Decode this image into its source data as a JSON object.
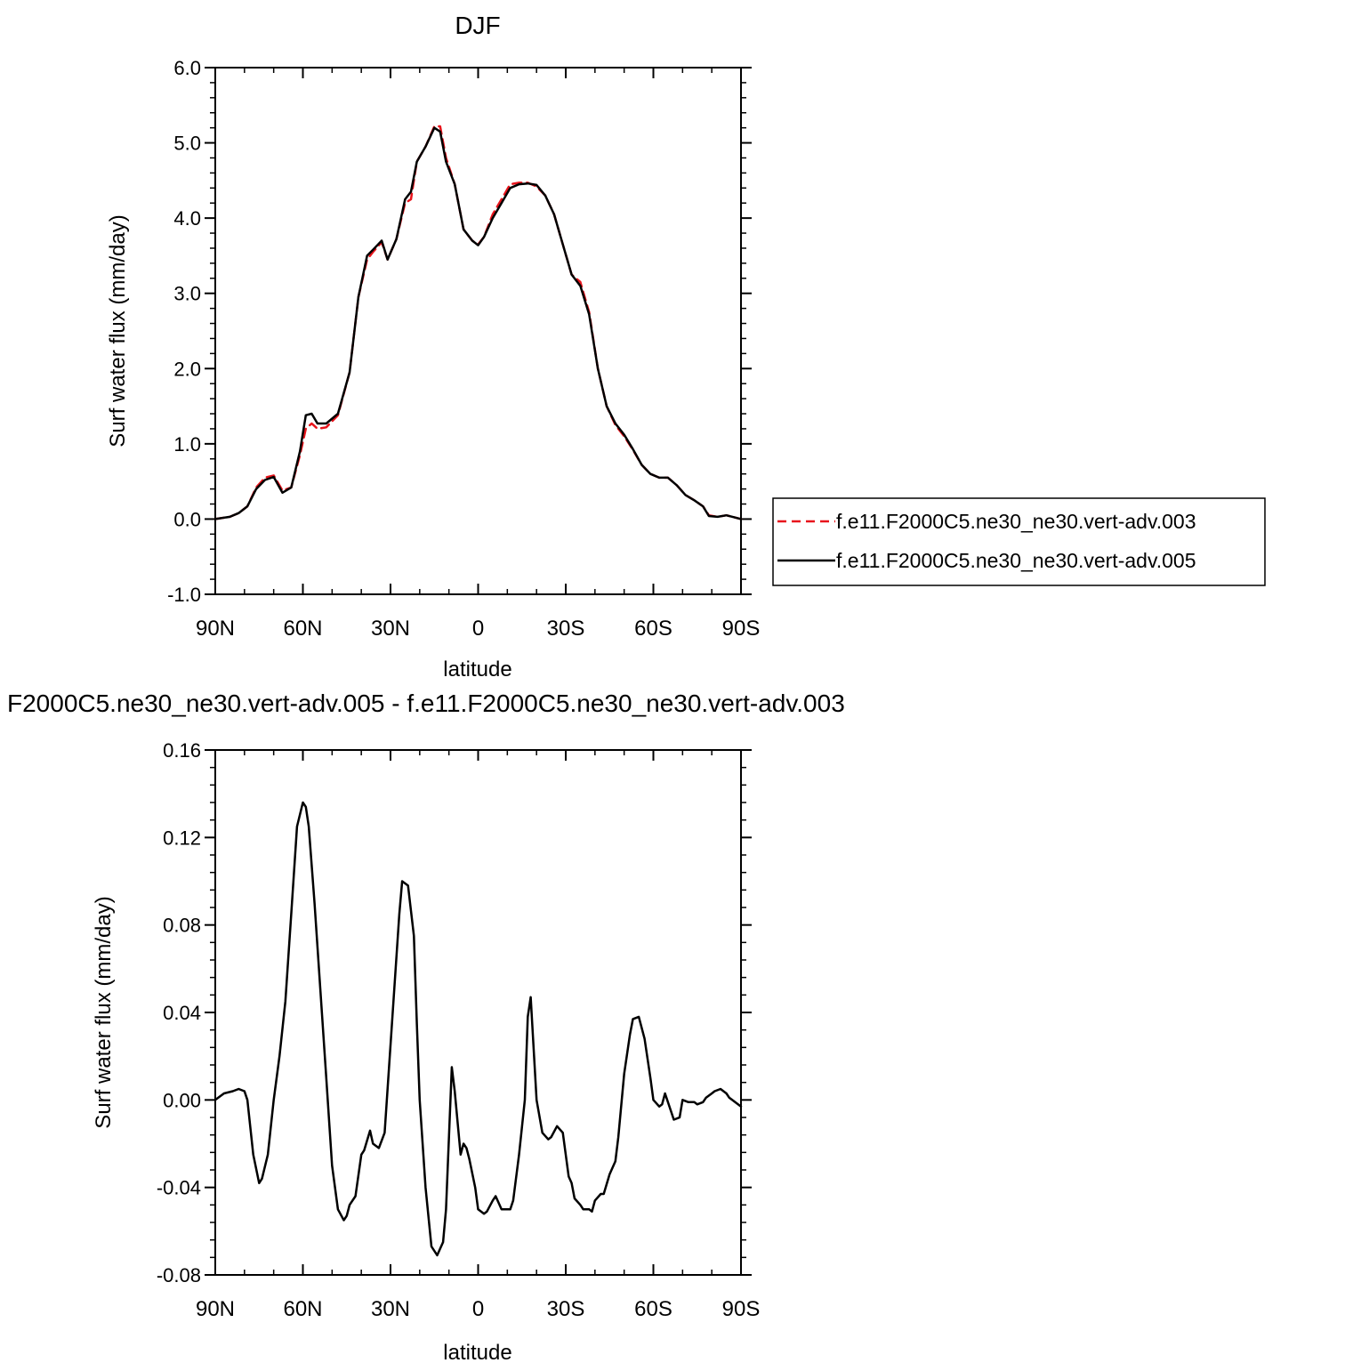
{
  "chart_data": [
    {
      "type": "line",
      "title": "DJF",
      "xlabel": "latitude",
      "ylabel": "Surf water flux (mm/day)",
      "xlim": [
        90,
        -90
      ],
      "ylim": [
        -1.0,
        6.0
      ],
      "grid": false,
      "legend_position": "right",
      "x_ticks": [
        90,
        60,
        30,
        0,
        -30,
        -60,
        -90
      ],
      "x_tick_labels": [
        "90N",
        "60N",
        "30N",
        "0",
        "30S",
        "60S",
        "90S"
      ],
      "y_ticks": [
        -1.0,
        0.0,
        1.0,
        2.0,
        3.0,
        4.0,
        5.0,
        6.0
      ],
      "y_tick_labels": [
        "-1.0",
        "0.0",
        "1.0",
        "2.0",
        "3.0",
        "4.0",
        "5.0",
        "6.0"
      ],
      "series": [
        {
          "name": "f.e11.F2000C5.ne30_ne30.vert-adv.003",
          "color": "#e8141c",
          "dash": "dashed",
          "x": [
            90,
            85,
            82,
            79,
            76,
            73,
            70,
            67,
            64,
            61,
            59,
            57,
            55,
            52,
            48,
            44,
            41,
            38,
            36,
            33,
            31,
            28,
            25,
            23,
            21,
            18,
            15,
            13,
            11,
            8,
            5,
            2,
            0,
            -2,
            -5,
            -8,
            -11,
            -14,
            -17,
            -20,
            -23,
            -26,
            -29,
            -32,
            -35,
            -38,
            -41,
            -44,
            -47,
            -50,
            -53,
            -56,
            -59,
            -62,
            -65,
            -68,
            -71,
            -74,
            -77,
            -79,
            -82,
            -85,
            -88,
            -90
          ],
          "y": [
            0.0,
            0.03,
            0.08,
            0.17,
            0.42,
            0.55,
            0.58,
            0.38,
            0.42,
            0.85,
            1.2,
            1.27,
            1.2,
            1.22,
            1.38,
            1.95,
            2.95,
            3.45,
            3.55,
            3.68,
            3.45,
            3.72,
            4.2,
            4.25,
            4.75,
            4.95,
            5.22,
            5.22,
            4.8,
            4.45,
            3.85,
            3.7,
            3.65,
            3.75,
            4.05,
            4.25,
            4.45,
            4.47,
            4.47,
            4.42,
            4.3,
            4.05,
            3.65,
            3.25,
            3.15,
            2.75,
            2.0,
            1.5,
            1.25,
            1.1,
            0.92,
            0.72,
            0.6,
            0.55,
            0.55,
            0.45,
            0.32,
            0.25,
            0.17,
            0.05,
            0.03,
            0.05,
            0.02,
            0.0
          ]
        },
        {
          "name": "f.e11.F2000C5.ne30_ne30.vert-adv.005",
          "color": "#000000",
          "dash": "solid",
          "x": [
            90,
            85,
            82,
            79,
            76,
            73,
            70,
            67,
            64,
            61,
            59,
            57,
            55,
            52,
            48,
            44,
            41,
            38,
            36,
            33,
            31,
            28,
            25,
            23,
            21,
            18,
            15,
            13,
            11,
            8,
            5,
            2,
            0,
            -2,
            -5,
            -8,
            -11,
            -14,
            -17,
            -20,
            -23,
            -26,
            -29,
            -32,
            -35,
            -38,
            -41,
            -44,
            -47,
            -50,
            -53,
            -56,
            -59,
            -62,
            -65,
            -68,
            -71,
            -74,
            -77,
            -79,
            -82,
            -85,
            -88,
            -90
          ],
          "y": [
            0.0,
            0.03,
            0.08,
            0.17,
            0.4,
            0.52,
            0.56,
            0.35,
            0.42,
            0.9,
            1.38,
            1.4,
            1.27,
            1.27,
            1.4,
            1.95,
            2.95,
            3.5,
            3.58,
            3.7,
            3.45,
            3.72,
            4.25,
            4.35,
            4.75,
            4.95,
            5.2,
            5.15,
            4.75,
            4.45,
            3.85,
            3.7,
            3.64,
            3.75,
            4.0,
            4.2,
            4.4,
            4.45,
            4.46,
            4.44,
            4.3,
            4.05,
            3.65,
            3.25,
            3.1,
            2.72,
            2.0,
            1.5,
            1.27,
            1.12,
            0.93,
            0.72,
            0.6,
            0.55,
            0.55,
            0.45,
            0.32,
            0.25,
            0.17,
            0.04,
            0.03,
            0.05,
            0.02,
            0.0
          ]
        }
      ]
    },
    {
      "type": "line",
      "title": "F2000C5.ne30_ne30.vert-adv.005 - f.e11.F2000C5.ne30_ne30.vert-adv.003",
      "xlabel": "latitude",
      "ylabel": "Surf water flux (mm/day)",
      "xlim": [
        90,
        -90
      ],
      "ylim": [
        -0.08,
        0.16
      ],
      "grid": false,
      "x_ticks": [
        90,
        60,
        30,
        0,
        -30,
        -60,
        -90
      ],
      "x_tick_labels": [
        "90N",
        "60N",
        "30N",
        "0",
        "30S",
        "60S",
        "90S"
      ],
      "y_ticks": [
        -0.08,
        -0.04,
        0.0,
        0.04,
        0.08,
        0.12,
        0.16
      ],
      "y_tick_labels": [
        "-0.08",
        "-0.04",
        "0.00",
        "0.04",
        "0.08",
        "0.12",
        "0.16"
      ],
      "series": [
        {
          "color": "#000000",
          "dash": "solid",
          "x": [
            90,
            87,
            84,
            82,
            80,
            79,
            77,
            75,
            74,
            72,
            70,
            68,
            66,
            64,
            62,
            60,
            59,
            58,
            56,
            54,
            52,
            50,
            48,
            46,
            45,
            44,
            42,
            40,
            39,
            37,
            36,
            34,
            32,
            31,
            29,
            27,
            26,
            24,
            22,
            21,
            20,
            18,
            16,
            14,
            13,
            12,
            11,
            9,
            8,
            6,
            5,
            4,
            3,
            1,
            0,
            -2,
            -3,
            -5,
            -6,
            -8,
            -9,
            -11,
            -12,
            -14,
            -16,
            -17,
            -18,
            -20,
            -22,
            -24,
            -25,
            -27,
            -29,
            -31,
            -32,
            -33,
            -35,
            -36,
            -38,
            -39,
            -40,
            -42,
            -43,
            -45,
            -47,
            -48,
            -50,
            -52,
            -53,
            -55,
            -57,
            -59,
            -60,
            -62,
            -63,
            -64,
            -66,
            -67,
            -69,
            -70,
            -72,
            -74,
            -75,
            -77,
            -78,
            -80,
            -81,
            -83,
            -84,
            -85,
            -86,
            -87,
            -88,
            -89,
            -90
          ],
          "y": [
            0.0,
            0.003,
            0.004,
            0.005,
            0.004,
            0.0,
            -0.025,
            -0.038,
            -0.036,
            -0.025,
            0.0,
            0.02,
            0.045,
            0.085,
            0.125,
            0.136,
            0.134,
            0.125,
            0.09,
            0.05,
            0.01,
            -0.03,
            -0.05,
            -0.055,
            -0.053,
            -0.048,
            -0.044,
            -0.025,
            -0.023,
            -0.014,
            -0.02,
            -0.022,
            -0.015,
            0.005,
            0.045,
            0.085,
            0.1,
            0.098,
            0.075,
            0.035,
            0.0,
            -0.04,
            -0.067,
            -0.071,
            -0.068,
            -0.065,
            -0.05,
            0.015,
            0.004,
            -0.025,
            -0.02,
            -0.022,
            -0.027,
            -0.04,
            -0.05,
            -0.052,
            -0.051,
            -0.046,
            -0.044,
            -0.05,
            -0.05,
            -0.05,
            -0.046,
            -0.025,
            0.0,
            0.038,
            0.047,
            0.0,
            -0.015,
            -0.018,
            -0.017,
            -0.012,
            -0.015,
            -0.035,
            -0.038,
            -0.045,
            -0.048,
            -0.05,
            -0.05,
            -0.051,
            -0.046,
            -0.043,
            -0.043,
            -0.034,
            -0.028,
            -0.017,
            0.012,
            0.03,
            0.037,
            0.038,
            0.028,
            0.01,
            0.0,
            -0.003,
            -0.002,
            0.003,
            -0.005,
            -0.009,
            -0.008,
            0.0,
            -0.001,
            -0.001,
            -0.002,
            -0.001,
            0.001,
            0.003,
            0.004,
            0.005,
            0.004,
            0.003,
            0.001,
            0.0,
            -0.001,
            -0.002,
            -0.003
          ]
        }
      ]
    }
  ]
}
